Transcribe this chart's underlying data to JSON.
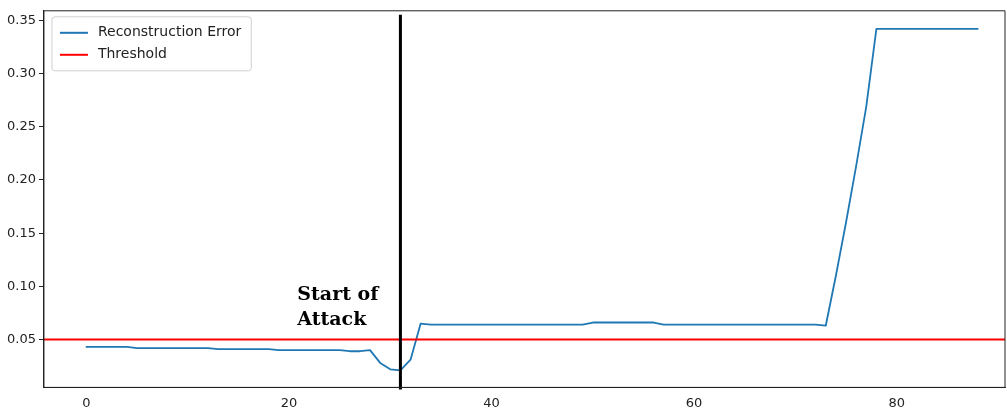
{
  "chart_data": {
    "type": "line",
    "x": [
      0,
      1,
      2,
      3,
      4,
      5,
      6,
      7,
      8,
      9,
      10,
      11,
      12,
      13,
      14,
      15,
      16,
      17,
      18,
      19,
      20,
      21,
      22,
      23,
      24,
      25,
      26,
      27,
      28,
      29,
      30,
      31,
      32,
      33,
      34,
      35,
      36,
      37,
      38,
      39,
      40,
      41,
      42,
      43,
      44,
      45,
      46,
      47,
      48,
      49,
      50,
      51,
      52,
      53,
      54,
      55,
      56,
      57,
      58,
      59,
      60,
      61,
      62,
      63,
      64,
      65,
      66,
      67,
      68,
      69,
      70,
      71,
      72,
      73,
      74,
      75,
      76,
      77,
      78,
      79,
      80,
      81,
      82,
      83,
      84,
      85,
      86,
      87,
      88
    ],
    "series": [
      {
        "name": "Reconstruction Error",
        "color": "#1f77b4",
        "values": [
          0.043,
          0.043,
          0.043,
          0.043,
          0.043,
          0.042,
          0.042,
          0.042,
          0.042,
          0.042,
          0.042,
          0.042,
          0.042,
          0.041,
          0.041,
          0.041,
          0.041,
          0.041,
          0.041,
          0.04,
          0.04,
          0.04,
          0.04,
          0.04,
          0.04,
          0.04,
          0.039,
          0.039,
          0.04,
          0.028,
          0.022,
          0.021,
          0.031,
          0.065,
          0.064,
          0.064,
          0.064,
          0.064,
          0.064,
          0.064,
          0.064,
          0.064,
          0.064,
          0.064,
          0.064,
          0.064,
          0.064,
          0.064,
          0.064,
          0.064,
          0.066,
          0.066,
          0.066,
          0.066,
          0.066,
          0.066,
          0.066,
          0.064,
          0.064,
          0.064,
          0.064,
          0.064,
          0.064,
          0.064,
          0.064,
          0.064,
          0.064,
          0.064,
          0.064,
          0.064,
          0.064,
          0.064,
          0.064,
          0.063,
          0.11,
          0.16,
          0.213,
          0.269,
          0.342,
          0.342,
          0.342,
          0.342,
          0.342,
          0.342,
          0.342,
          0.342,
          0.342,
          0.342,
          0.342
        ]
      }
    ],
    "xlim": [
      -4.2,
      90.7
    ],
    "ylim": [
      0.005,
      0.359
    ],
    "xticks": [
      0,
      20,
      40,
      60,
      80
    ],
    "yticks": [
      {
        "value": 0.05,
        "label": "0.05"
      },
      {
        "value": 0.1,
        "label": "0.10"
      },
      {
        "value": 0.15,
        "label": "0.15"
      },
      {
        "value": 0.2,
        "label": "0.20"
      },
      {
        "value": 0.25,
        "label": "0.25"
      },
      {
        "value": 0.3,
        "label": "0.30"
      },
      {
        "value": 0.35,
        "label": "0.35"
      }
    ],
    "ref_lines": [
      {
        "axis": "y",
        "value": 0.05,
        "label": "Threshold",
        "color": "#ff0000"
      },
      {
        "axis": "x",
        "value": 31,
        "label": null,
        "color": "#000000"
      }
    ],
    "annotations": [
      "Start of\nAttack"
    ],
    "legend": "top left",
    "grid": false,
    "marker": "none",
    "line_style": "solid"
  }
}
